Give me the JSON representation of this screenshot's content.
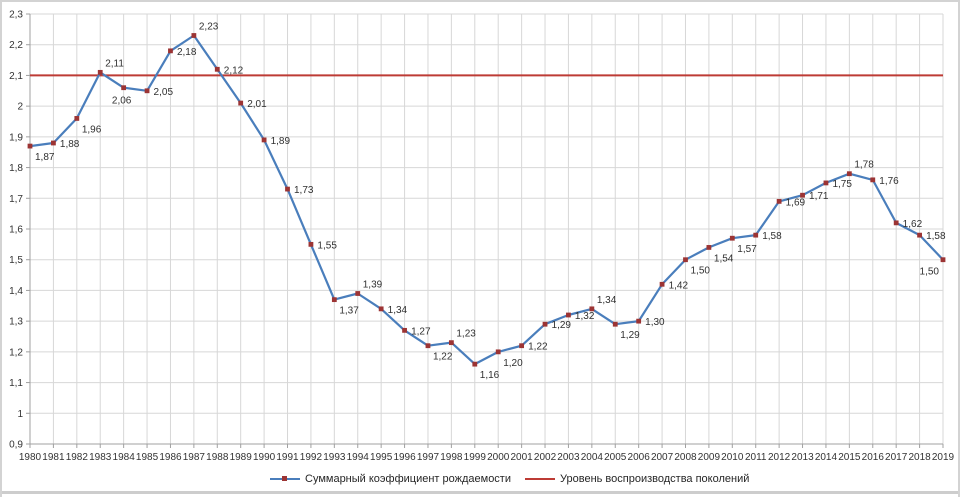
{
  "chart_data": {
    "type": "line",
    "title": "",
    "xlabel": "",
    "ylabel": "",
    "categories": [
      "1980",
      "1981",
      "1982",
      "1983",
      "1984",
      "1985",
      "1986",
      "1987",
      "1988",
      "1989",
      "1990",
      "1991",
      "1992",
      "1993",
      "1994",
      "1995",
      "1996",
      "1997",
      "1998",
      "1999",
      "2000",
      "2001",
      "2002",
      "2003",
      "2004",
      "2005",
      "2006",
      "2007",
      "2008",
      "2009",
      "2010",
      "2011",
      "2012",
      "2013",
      "2014",
      "2015",
      "2016",
      "2017",
      "2018",
      "2019"
    ],
    "series": [
      {
        "name": "Суммарный коэффициент рождаемости",
        "type": "line-with-markers",
        "color": "#4a7ebc",
        "marker": "square",
        "marker_color": "#9c3434",
        "values": [
          1.87,
          1.88,
          1.96,
          2.11,
          2.06,
          2.05,
          2.18,
          2.23,
          2.12,
          2.01,
          1.89,
          1.73,
          1.55,
          1.37,
          1.39,
          1.34,
          1.27,
          1.22,
          1.23,
          1.16,
          1.2,
          1.22,
          1.29,
          1.32,
          1.34,
          1.29,
          1.3,
          1.42,
          1.5,
          1.54,
          1.57,
          1.58,
          1.69,
          1.71,
          1.75,
          1.78,
          1.76,
          1.62,
          1.58,
          1.5
        ],
        "data_labels": [
          "1,87",
          "1,88",
          "1,96",
          "2,11",
          "2,06",
          "2,05",
          "2,18",
          "2,23",
          "2,12",
          "2,01",
          "1,89",
          "1,73",
          "1,55",
          "1,37",
          "1,39",
          "1,34",
          "1,27",
          "1,22",
          "1,23",
          "1,16",
          "1,20",
          "1,22",
          "1,29",
          "1,32",
          "1,34",
          "1,29",
          "1,30",
          "1,42",
          "1,50",
          "1,54",
          "1,57",
          "1,58",
          "1,69",
          "1,71",
          "1,75",
          "1,78",
          "1,76",
          "1,62",
          "1,58",
          "1,50"
        ]
      },
      {
        "name": "Уровень воспроизводства поколений",
        "type": "reference-line",
        "color": "#bd3b35",
        "value": 2.1
      }
    ],
    "ylim": [
      0.9,
      2.3
    ],
    "y_step": 0.1,
    "y_tick_labels": [
      "0,9",
      "1",
      "1,1",
      "1,2",
      "1,3",
      "1,4",
      "1,5",
      "1,6",
      "1,7",
      "1,8",
      "1,9",
      "2",
      "2,1",
      "2,2",
      "2,3"
    ],
    "grid": true,
    "legend_position": "bottom",
    "colors": {
      "grid": "#d7d7d7",
      "axis": "#a0a0a0",
      "tick_text": "#333333",
      "data_label_text": "#303030"
    }
  }
}
